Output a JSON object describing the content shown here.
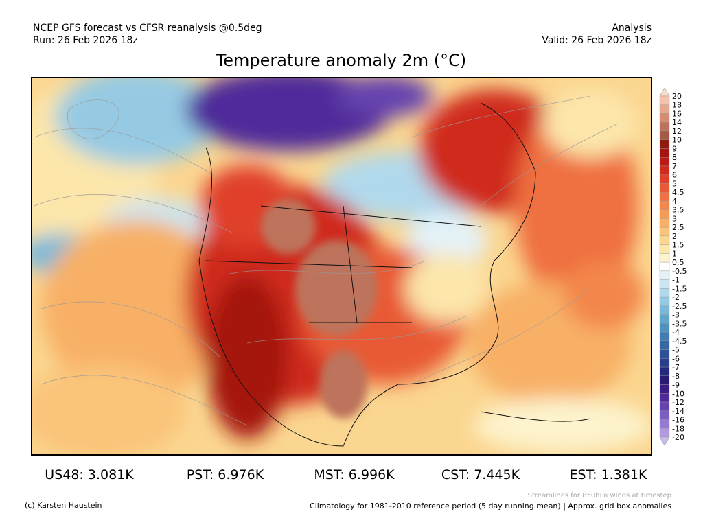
{
  "header": {
    "source": "NCEP GFS forecast vs CFSR reanalysis @0.5deg",
    "run": "Run: 26 Feb 2026 18z",
    "kind": "Analysis",
    "valid": "Valid: 26 Feb 2026 18z",
    "title": "Temperature anomaly 2m (°C)"
  },
  "colorbar": {
    "labels": [
      20,
      18,
      16,
      14,
      12,
      10,
      9,
      8,
      7,
      6,
      5,
      4.5,
      4,
      3.5,
      3,
      2.5,
      2,
      1.5,
      1,
      0.5,
      -0.5,
      -1,
      -1.5,
      -2,
      -2.5,
      -3,
      -3.5,
      -4,
      -4.5,
      -5,
      -6,
      -7,
      -8,
      -9,
      -10,
      -12,
      -14,
      -16,
      -18,
      -20
    ],
    "colors": [
      "#fadccc",
      "#f3c3ad",
      "#e6a78e",
      "#d48c72",
      "#bd735b",
      "#a45a45",
      "#8e1b0d",
      "#a51410",
      "#bb1a14",
      "#cf2a1c",
      "#e0402a",
      "#e85a36",
      "#ef7040",
      "#f3874c",
      "#f69c58",
      "#f8b066",
      "#fac479",
      "#fbd690",
      "#fce6aa",
      "#fdf3cc",
      "#ffffff",
      "#e4f2f8",
      "#cbe6f2",
      "#b1d9ec",
      "#96cae3",
      "#7cb9d9",
      "#62a6cd",
      "#4f92c1",
      "#417db4",
      "#3668a6",
      "#2c5299",
      "#263e8c",
      "#24287e",
      "#2a1a74",
      "#3b1d86",
      "#4f2a9a",
      "#6542ae",
      "#7c5dc2",
      "#9579d2",
      "#b09ae0",
      "#cabcec"
    ]
  },
  "stats": [
    "US48: 3.081K",
    "PST: 6.976K",
    "MST: 6.996K",
    "CST: 7.445K",
    "EST: 1.381K"
  ],
  "footer": {
    "credit": "(c) Karsten Haustein",
    "streamlines": "Streamlines for 850hPa winds at timestep",
    "climatology": "Climatology for 1981-2010 reference period (5 day running mean) | Approx. grid box anomalies"
  }
}
